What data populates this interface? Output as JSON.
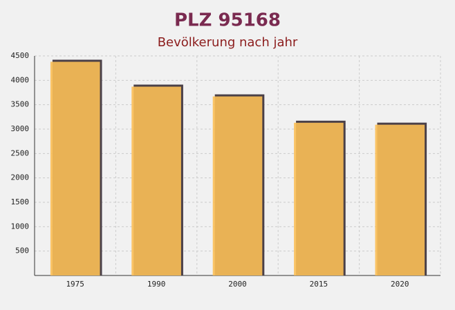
{
  "chart_data": {
    "type": "bar",
    "title": "PLZ 95168",
    "subtitle": "Bevölkerung nach jahr",
    "categories": [
      "1975",
      "1990",
      "2000",
      "2015",
      "2020"
    ],
    "values": [
      4380,
      3870,
      3670,
      3130,
      3090
    ],
    "color": "#fbbf56",
    "ylim": [
      0,
      4500
    ],
    "yticks": [
      500,
      1000,
      1500,
      2000,
      2500,
      3000,
      3500,
      4000,
      4500
    ],
    "grid": true
  }
}
